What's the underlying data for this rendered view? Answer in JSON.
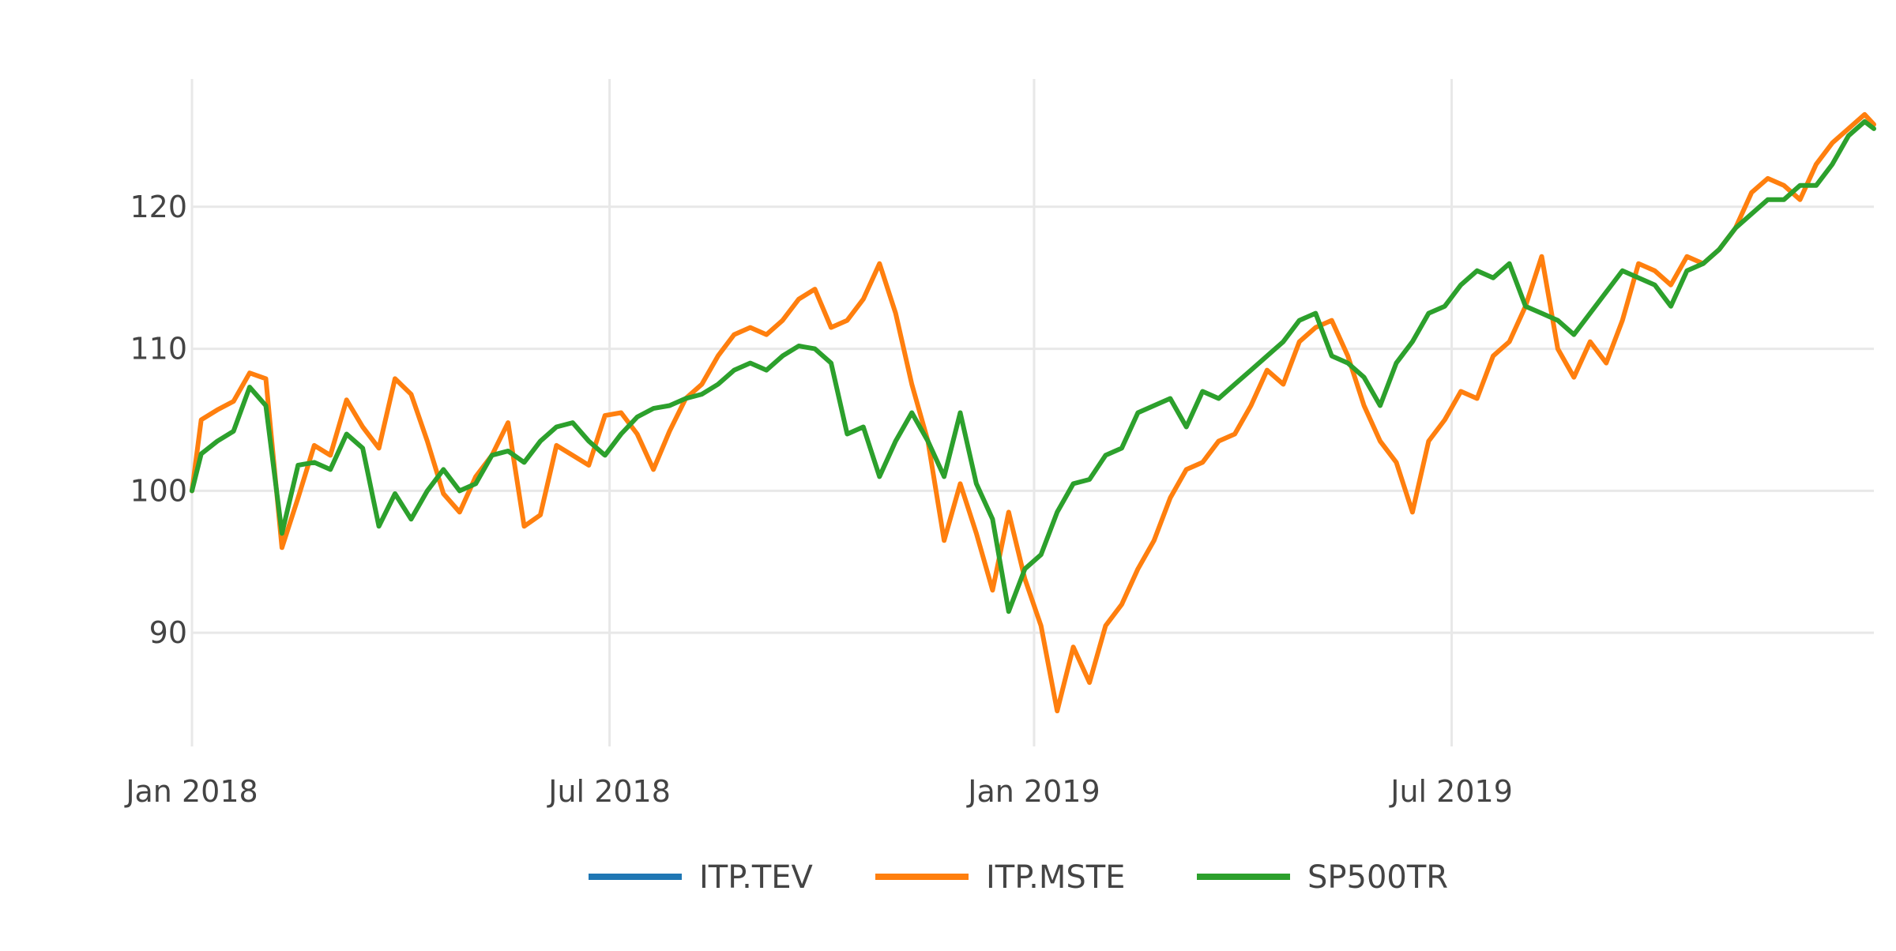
{
  "chart_data": {
    "type": "line",
    "title": "",
    "xlabel": "",
    "ylabel": "",
    "xlim": [
      "2018-01-01",
      "2019-12-31"
    ],
    "ylim": [
      82,
      129
    ],
    "y_ticks": [
      90,
      100,
      110,
      120
    ],
    "x_ticks": [
      {
        "date": "2018-01-01",
        "label": "Jan 2018"
      },
      {
        "date": "2018-07-01",
        "label": "Jul 2018"
      },
      {
        "date": "2019-01-01",
        "label": "Jan 2019"
      },
      {
        "date": "2019-07-01",
        "label": "Jul 2019"
      }
    ],
    "grid": true,
    "legend_position": "bottom-center",
    "series": [
      {
        "name": "ITP.TEV",
        "color": "#1f77b4",
        "points": []
      },
      {
        "name": "ITP.MSTE",
        "color": "#ff7f0e",
        "points": [
          [
            "2018-01-01",
            100.0
          ],
          [
            "2018-01-05",
            105.0
          ],
          [
            "2018-01-12",
            105.7
          ],
          [
            "2018-01-19",
            106.3
          ],
          [
            "2018-01-26",
            108.3
          ],
          [
            "2018-02-02",
            107.9
          ],
          [
            "2018-02-09",
            96.0
          ],
          [
            "2018-02-16",
            99.5
          ],
          [
            "2018-02-23",
            103.2
          ],
          [
            "2018-03-02",
            102.5
          ],
          [
            "2018-03-09",
            106.4
          ],
          [
            "2018-03-16",
            104.5
          ],
          [
            "2018-03-23",
            103.0
          ],
          [
            "2018-03-30",
            107.9
          ],
          [
            "2018-04-06",
            106.8
          ],
          [
            "2018-04-13",
            103.5
          ],
          [
            "2018-04-20",
            99.8
          ],
          [
            "2018-04-27",
            98.5
          ],
          [
            "2018-05-04",
            101.0
          ],
          [
            "2018-05-11",
            102.5
          ],
          [
            "2018-05-18",
            104.8
          ],
          [
            "2018-05-25",
            97.5
          ],
          [
            "2018-06-01",
            98.3
          ],
          [
            "2018-06-08",
            103.2
          ],
          [
            "2018-06-15",
            102.5
          ],
          [
            "2018-06-22",
            101.8
          ],
          [
            "2018-06-29",
            105.3
          ],
          [
            "2018-07-06",
            105.5
          ],
          [
            "2018-07-13",
            104.0
          ],
          [
            "2018-07-20",
            101.5
          ],
          [
            "2018-07-27",
            104.2
          ],
          [
            "2018-08-03",
            106.5
          ],
          [
            "2018-08-10",
            107.5
          ],
          [
            "2018-08-17",
            109.5
          ],
          [
            "2018-08-24",
            111.0
          ],
          [
            "2018-08-31",
            111.5
          ],
          [
            "2018-09-07",
            111.0
          ],
          [
            "2018-09-14",
            112.0
          ],
          [
            "2018-09-21",
            113.5
          ],
          [
            "2018-09-28",
            114.2
          ],
          [
            "2018-10-05",
            111.5
          ],
          [
            "2018-10-12",
            112.0
          ],
          [
            "2018-10-19",
            113.5
          ],
          [
            "2018-10-26",
            116.0
          ],
          [
            "2018-11-02",
            112.5
          ],
          [
            "2018-11-09",
            107.5
          ],
          [
            "2018-11-16",
            103.5
          ],
          [
            "2018-11-23",
            96.5
          ],
          [
            "2018-11-30",
            100.5
          ],
          [
            "2018-12-07",
            97.0
          ],
          [
            "2018-12-14",
            93.0
          ],
          [
            "2018-12-21",
            98.5
          ],
          [
            "2018-12-28",
            93.8
          ],
          [
            "2019-01-04",
            90.5
          ],
          [
            "2019-01-11",
            84.5
          ],
          [
            "2019-01-18",
            89.0
          ],
          [
            "2019-01-25",
            86.5
          ],
          [
            "2019-02-01",
            90.5
          ],
          [
            "2019-02-08",
            92.0
          ],
          [
            "2019-02-15",
            94.5
          ],
          [
            "2019-02-22",
            96.5
          ],
          [
            "2019-03-01",
            99.5
          ],
          [
            "2019-03-08",
            101.5
          ],
          [
            "2019-03-15",
            102.0
          ],
          [
            "2019-03-22",
            103.5
          ],
          [
            "2019-03-29",
            104.0
          ],
          [
            "2019-04-05",
            106.0
          ],
          [
            "2019-04-12",
            108.5
          ],
          [
            "2019-04-19",
            107.5
          ],
          [
            "2019-04-26",
            110.5
          ],
          [
            "2019-05-03",
            111.5
          ],
          [
            "2019-05-10",
            112.0
          ],
          [
            "2019-05-17",
            109.5
          ],
          [
            "2019-05-24",
            106.0
          ],
          [
            "2019-05-31",
            103.5
          ],
          [
            "2019-06-07",
            102.0
          ],
          [
            "2019-06-14",
            98.5
          ],
          [
            "2019-06-21",
            103.5
          ],
          [
            "2019-06-28",
            105.0
          ],
          [
            "2019-07-05",
            107.0
          ],
          [
            "2019-07-12",
            106.5
          ],
          [
            "2019-07-19",
            109.5
          ],
          [
            "2019-07-26",
            110.5
          ],
          [
            "2019-08-02",
            113.0
          ],
          [
            "2019-08-09",
            116.5
          ],
          [
            "2019-08-16",
            110.0
          ],
          [
            "2019-08-23",
            108.0
          ],
          [
            "2019-08-30",
            110.5
          ],
          [
            "2019-09-06",
            109.0
          ],
          [
            "2019-09-13",
            112.0
          ],
          [
            "2019-09-20",
            116.0
          ],
          [
            "2019-09-27",
            115.5
          ],
          [
            "2019-10-04",
            114.5
          ],
          [
            "2019-10-11",
            116.5
          ],
          [
            "2019-10-18",
            116.0
          ],
          [
            "2019-10-25",
            117.0
          ],
          [
            "2019-11-01",
            118.5
          ],
          [
            "2019-11-08",
            121.0
          ],
          [
            "2019-11-15",
            122.0
          ],
          [
            "2019-11-22",
            121.5
          ],
          [
            "2019-11-29",
            120.5
          ],
          [
            "2019-12-06",
            123.0
          ],
          [
            "2019-12-13",
            124.5
          ],
          [
            "2019-12-20",
            125.5
          ],
          [
            "2019-12-27",
            126.5
          ],
          [
            "2019-12-31",
            125.8
          ]
        ]
      },
      {
        "name": "SP500TR",
        "color": "#2ca02c",
        "points": [
          [
            "2018-01-01",
            100.0
          ],
          [
            "2018-01-05",
            102.6
          ],
          [
            "2018-01-12",
            103.5
          ],
          [
            "2018-01-19",
            104.2
          ],
          [
            "2018-01-26",
            107.3
          ],
          [
            "2018-02-02",
            106.0
          ],
          [
            "2018-02-09",
            97.0
          ],
          [
            "2018-02-16",
            101.8
          ],
          [
            "2018-02-23",
            102.0
          ],
          [
            "2018-03-02",
            101.5
          ],
          [
            "2018-03-09",
            104.0
          ],
          [
            "2018-03-16",
            103.0
          ],
          [
            "2018-03-23",
            97.5
          ],
          [
            "2018-03-30",
            99.8
          ],
          [
            "2018-04-06",
            98.0
          ],
          [
            "2018-04-13",
            100.0
          ],
          [
            "2018-04-20",
            101.5
          ],
          [
            "2018-04-27",
            100.0
          ],
          [
            "2018-05-04",
            100.5
          ],
          [
            "2018-05-11",
            102.5
          ],
          [
            "2018-05-18",
            102.8
          ],
          [
            "2018-05-25",
            102.0
          ],
          [
            "2018-06-01",
            103.5
          ],
          [
            "2018-06-08",
            104.5
          ],
          [
            "2018-06-15",
            104.8
          ],
          [
            "2018-06-22",
            103.5
          ],
          [
            "2018-06-29",
            102.5
          ],
          [
            "2018-07-06",
            104.0
          ],
          [
            "2018-07-13",
            105.2
          ],
          [
            "2018-07-20",
            105.8
          ],
          [
            "2018-07-27",
            106.0
          ],
          [
            "2018-08-03",
            106.5
          ],
          [
            "2018-08-10",
            106.8
          ],
          [
            "2018-08-17",
            107.5
          ],
          [
            "2018-08-24",
            108.5
          ],
          [
            "2018-08-31",
            109.0
          ],
          [
            "2018-09-07",
            108.5
          ],
          [
            "2018-09-14",
            109.5
          ],
          [
            "2018-09-21",
            110.2
          ],
          [
            "2018-09-28",
            110.0
          ],
          [
            "2018-10-05",
            109.0
          ],
          [
            "2018-10-12",
            104.0
          ],
          [
            "2018-10-19",
            104.5
          ],
          [
            "2018-10-26",
            101.0
          ],
          [
            "2018-11-02",
            103.5
          ],
          [
            "2018-11-09",
            105.5
          ],
          [
            "2018-11-16",
            103.5
          ],
          [
            "2018-11-23",
            101.0
          ],
          [
            "2018-11-30",
            105.5
          ],
          [
            "2018-12-07",
            100.5
          ],
          [
            "2018-12-14",
            98.0
          ],
          [
            "2018-12-21",
            91.5
          ],
          [
            "2018-12-28",
            94.5
          ],
          [
            "2019-01-04",
            95.5
          ],
          [
            "2019-01-11",
            98.5
          ],
          [
            "2019-01-18",
            100.5
          ],
          [
            "2019-01-25",
            100.8
          ],
          [
            "2019-02-01",
            102.5
          ],
          [
            "2019-02-08",
            103.0
          ],
          [
            "2019-02-15",
            105.5
          ],
          [
            "2019-02-22",
            106.0
          ],
          [
            "2019-03-01",
            106.5
          ],
          [
            "2019-03-08",
            104.5
          ],
          [
            "2019-03-15",
            107.0
          ],
          [
            "2019-03-22",
            106.5
          ],
          [
            "2019-03-29",
            107.5
          ],
          [
            "2019-04-05",
            108.5
          ],
          [
            "2019-04-12",
            109.5
          ],
          [
            "2019-04-19",
            110.5
          ],
          [
            "2019-04-26",
            112.0
          ],
          [
            "2019-05-03",
            112.5
          ],
          [
            "2019-05-10",
            109.5
          ],
          [
            "2019-05-17",
            109.0
          ],
          [
            "2019-05-24",
            108.0
          ],
          [
            "2019-05-31",
            106.0
          ],
          [
            "2019-06-07",
            109.0
          ],
          [
            "2019-06-14",
            110.5
          ],
          [
            "2019-06-21",
            112.5
          ],
          [
            "2019-06-28",
            113.0
          ],
          [
            "2019-07-05",
            114.5
          ],
          [
            "2019-07-12",
            115.5
          ],
          [
            "2019-07-19",
            115.0
          ],
          [
            "2019-07-26",
            116.0
          ],
          [
            "2019-08-02",
            113.0
          ],
          [
            "2019-08-09",
            112.5
          ],
          [
            "2019-08-16",
            112.0
          ],
          [
            "2019-08-23",
            111.0
          ],
          [
            "2019-08-30",
            112.5
          ],
          [
            "2019-09-06",
            114.0
          ],
          [
            "2019-09-13",
            115.5
          ],
          [
            "2019-09-20",
            115.0
          ],
          [
            "2019-09-27",
            114.5
          ],
          [
            "2019-10-04",
            113.0
          ],
          [
            "2019-10-11",
            115.5
          ],
          [
            "2019-10-18",
            116.0
          ],
          [
            "2019-10-25",
            117.0
          ],
          [
            "2019-11-01",
            118.5
          ],
          [
            "2019-11-08",
            119.5
          ],
          [
            "2019-11-15",
            120.5
          ],
          [
            "2019-11-22",
            120.5
          ],
          [
            "2019-11-29",
            121.5
          ],
          [
            "2019-12-06",
            121.5
          ],
          [
            "2019-12-13",
            123.0
          ],
          [
            "2019-12-20",
            125.0
          ],
          [
            "2019-12-27",
            126.0
          ],
          [
            "2019-12-31",
            125.5
          ]
        ]
      }
    ]
  }
}
